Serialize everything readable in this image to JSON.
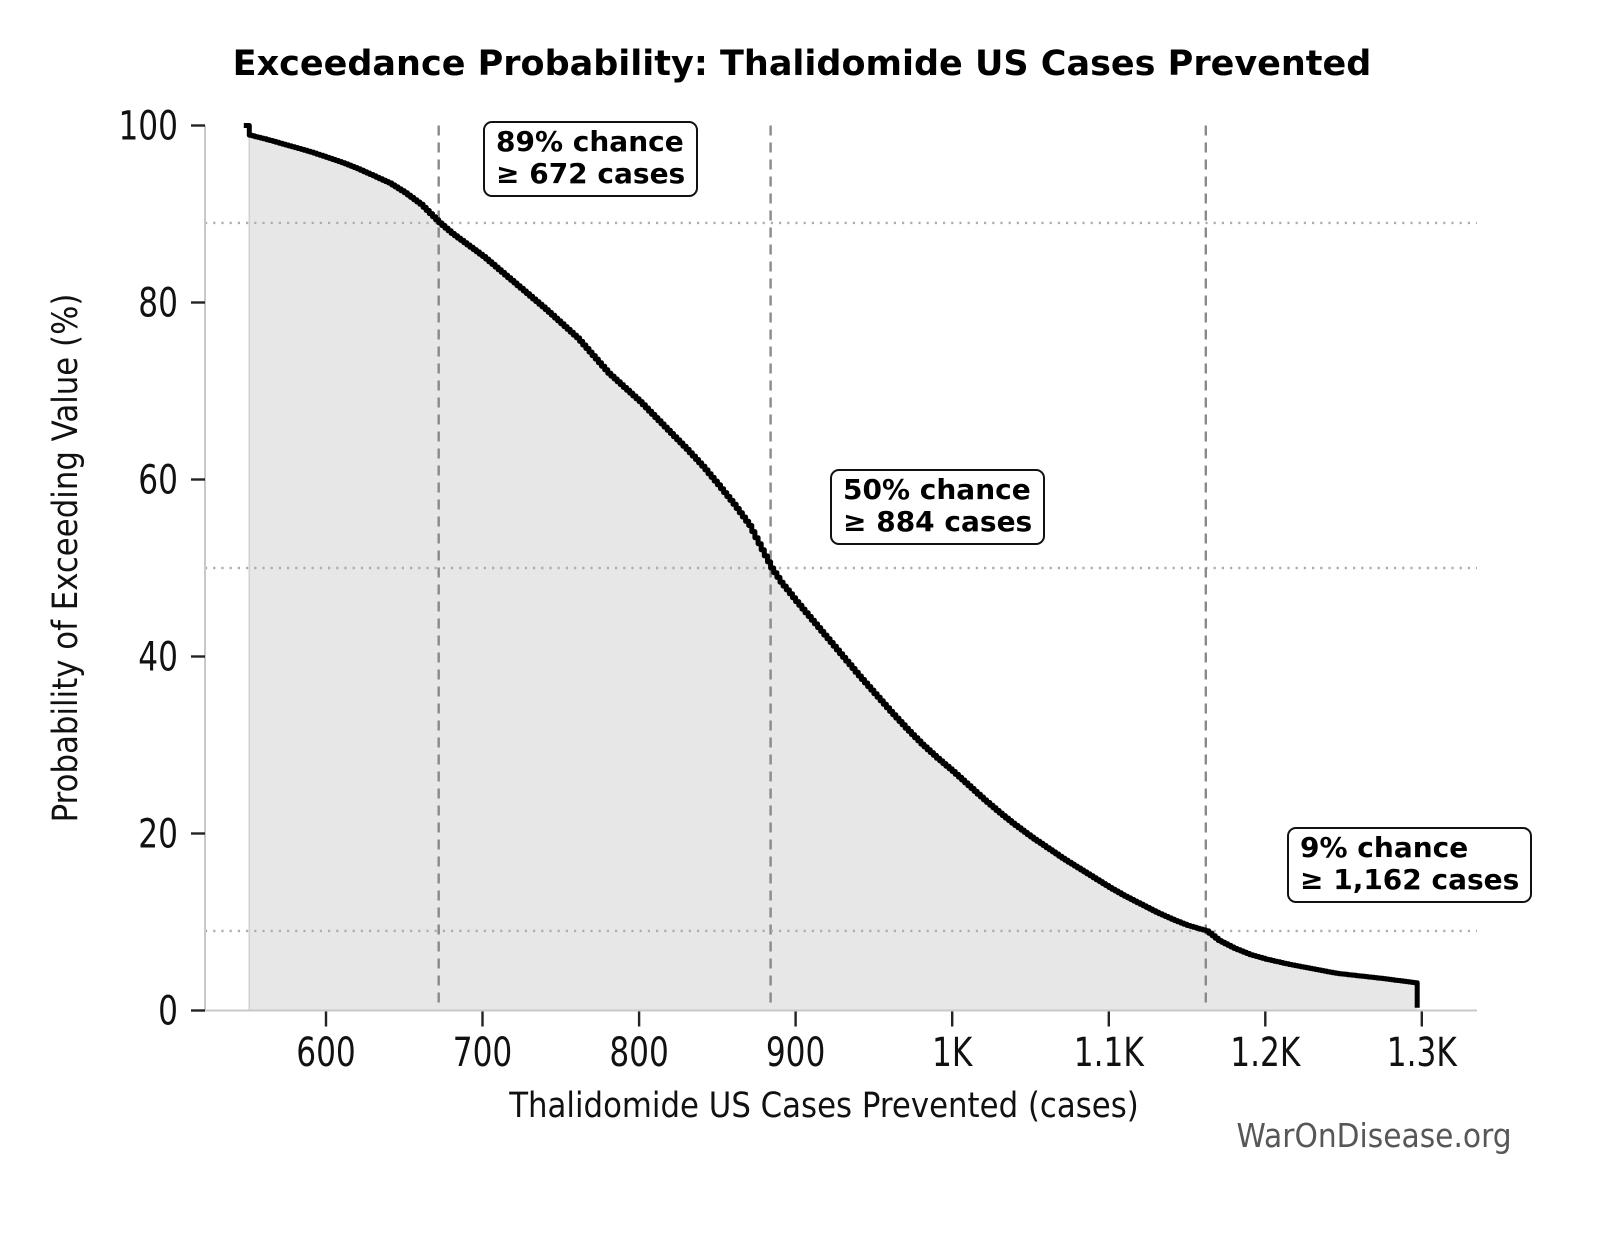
{
  "ui": {
    "title": "Exceedance Probability: Thalidomide US Cases Prevented",
    "x_axis_label": "Thalidomide US Cases Prevented (cases)",
    "y_axis_label": "Probability of Exceeding Value (%)",
    "footer": "WarOnDisease.org",
    "annotations": [
      {
        "line1": "89% chance",
        "line2": "≥ 672 cases"
      },
      {
        "line1": "50% chance",
        "line2": "≥ 884 cases"
      },
      {
        "line1": "9% chance",
        "line2": "≥ 1,162 cases"
      }
    ]
  },
  "colors": {
    "curve": "#000000",
    "fill": "#e7e7e7",
    "fill_edge": "#d0d0d0",
    "spine": "#c9c9c9",
    "tick": "#222222",
    "dashed_guide": "#8a8a8a",
    "dotted_guide": "#adadad",
    "footer_text": "#575757"
  },
  "chart_data": {
    "type": "area",
    "title": "Exceedance Probability: Thalidomide US Cases Prevented",
    "xlabel": "Thalidomide US Cases Prevented (cases)",
    "ylabel": "Probability of Exceeding Value (%)",
    "xlim": [
      548,
      1335
    ],
    "ylim": [
      0,
      100
    ],
    "grid": "dotted horizontal lines at key probabilities; dashed vertical lines at key case thresholds",
    "legend": "none",
    "x_ticks": [
      600,
      700,
      800,
      900,
      1000,
      1100,
      1200,
      1300
    ],
    "x_tick_labels": [
      "600",
      "700",
      "800",
      "900",
      "1K",
      "1.1K",
      "1.2K",
      "1.3K"
    ],
    "y_ticks": [
      0,
      20,
      40,
      60,
      80,
      100
    ],
    "y_tick_labels": [
      "0",
      "20",
      "40",
      "60",
      "80",
      "100"
    ],
    "key_points": [
      {
        "probability_percent": 89,
        "cases": 672
      },
      {
        "probability_percent": 50,
        "cases": 884
      },
      {
        "probability_percent": 9,
        "cases": 1162
      }
    ],
    "curve_points": [
      [
        547.5,
        100
      ],
      [
        551,
        100
      ],
      [
        551,
        98.9
      ],
      [
        560,
        98.5
      ],
      [
        570,
        98.0
      ],
      [
        580,
        97.5
      ],
      [
        590,
        97.0
      ],
      [
        600,
        96.4
      ],
      [
        610,
        95.8
      ],
      [
        620,
        95.1
      ],
      [
        630,
        94.3
      ],
      [
        640,
        93.5
      ],
      [
        650,
        92.4
      ],
      [
        660,
        91.1
      ],
      [
        672,
        89.0
      ],
      [
        680,
        87.8
      ],
      [
        690,
        86.5
      ],
      [
        700,
        85.2
      ],
      [
        710,
        83.7
      ],
      [
        720,
        82.2
      ],
      [
        730,
        80.7
      ],
      [
        740,
        79.2
      ],
      [
        750,
        77.6
      ],
      [
        760,
        76.0
      ],
      [
        770,
        74.0
      ],
      [
        780,
        72.0
      ],
      [
        790,
        70.4
      ],
      [
        800,
        68.8
      ],
      [
        810,
        67.0
      ],
      [
        820,
        65.2
      ],
      [
        830,
        63.4
      ],
      [
        840,
        61.5
      ],
      [
        850,
        59.4
      ],
      [
        860,
        57.2
      ],
      [
        870,
        54.8
      ],
      [
        884,
        50.0
      ],
      [
        890,
        48.4
      ],
      [
        900,
        46.2
      ],
      [
        910,
        44.1
      ],
      [
        920,
        42.0
      ],
      [
        930,
        39.9
      ],
      [
        940,
        37.8
      ],
      [
        950,
        35.8
      ],
      [
        960,
        33.8
      ],
      [
        970,
        31.9
      ],
      [
        980,
        30.1
      ],
      [
        990,
        28.5
      ],
      [
        1000,
        27.0
      ],
      [
        1010,
        25.4
      ],
      [
        1020,
        23.8
      ],
      [
        1030,
        22.3
      ],
      [
        1040,
        20.9
      ],
      [
        1050,
        19.6
      ],
      [
        1060,
        18.4
      ],
      [
        1070,
        17.2
      ],
      [
        1080,
        16.1
      ],
      [
        1090,
        15.0
      ],
      [
        1100,
        13.9
      ],
      [
        1110,
        12.9
      ],
      [
        1120,
        12.0
      ],
      [
        1130,
        11.1
      ],
      [
        1140,
        10.3
      ],
      [
        1150,
        9.6
      ],
      [
        1162,
        9.0
      ],
      [
        1170,
        7.9
      ],
      [
        1180,
        7.0
      ],
      [
        1190,
        6.3
      ],
      [
        1200,
        5.8
      ],
      [
        1215,
        5.2
      ],
      [
        1230,
        4.7
      ],
      [
        1245,
        4.2
      ],
      [
        1260,
        3.9
      ],
      [
        1275,
        3.6
      ],
      [
        1288,
        3.3
      ],
      [
        1297,
        3.1
      ],
      [
        1297,
        0.3
      ]
    ]
  }
}
